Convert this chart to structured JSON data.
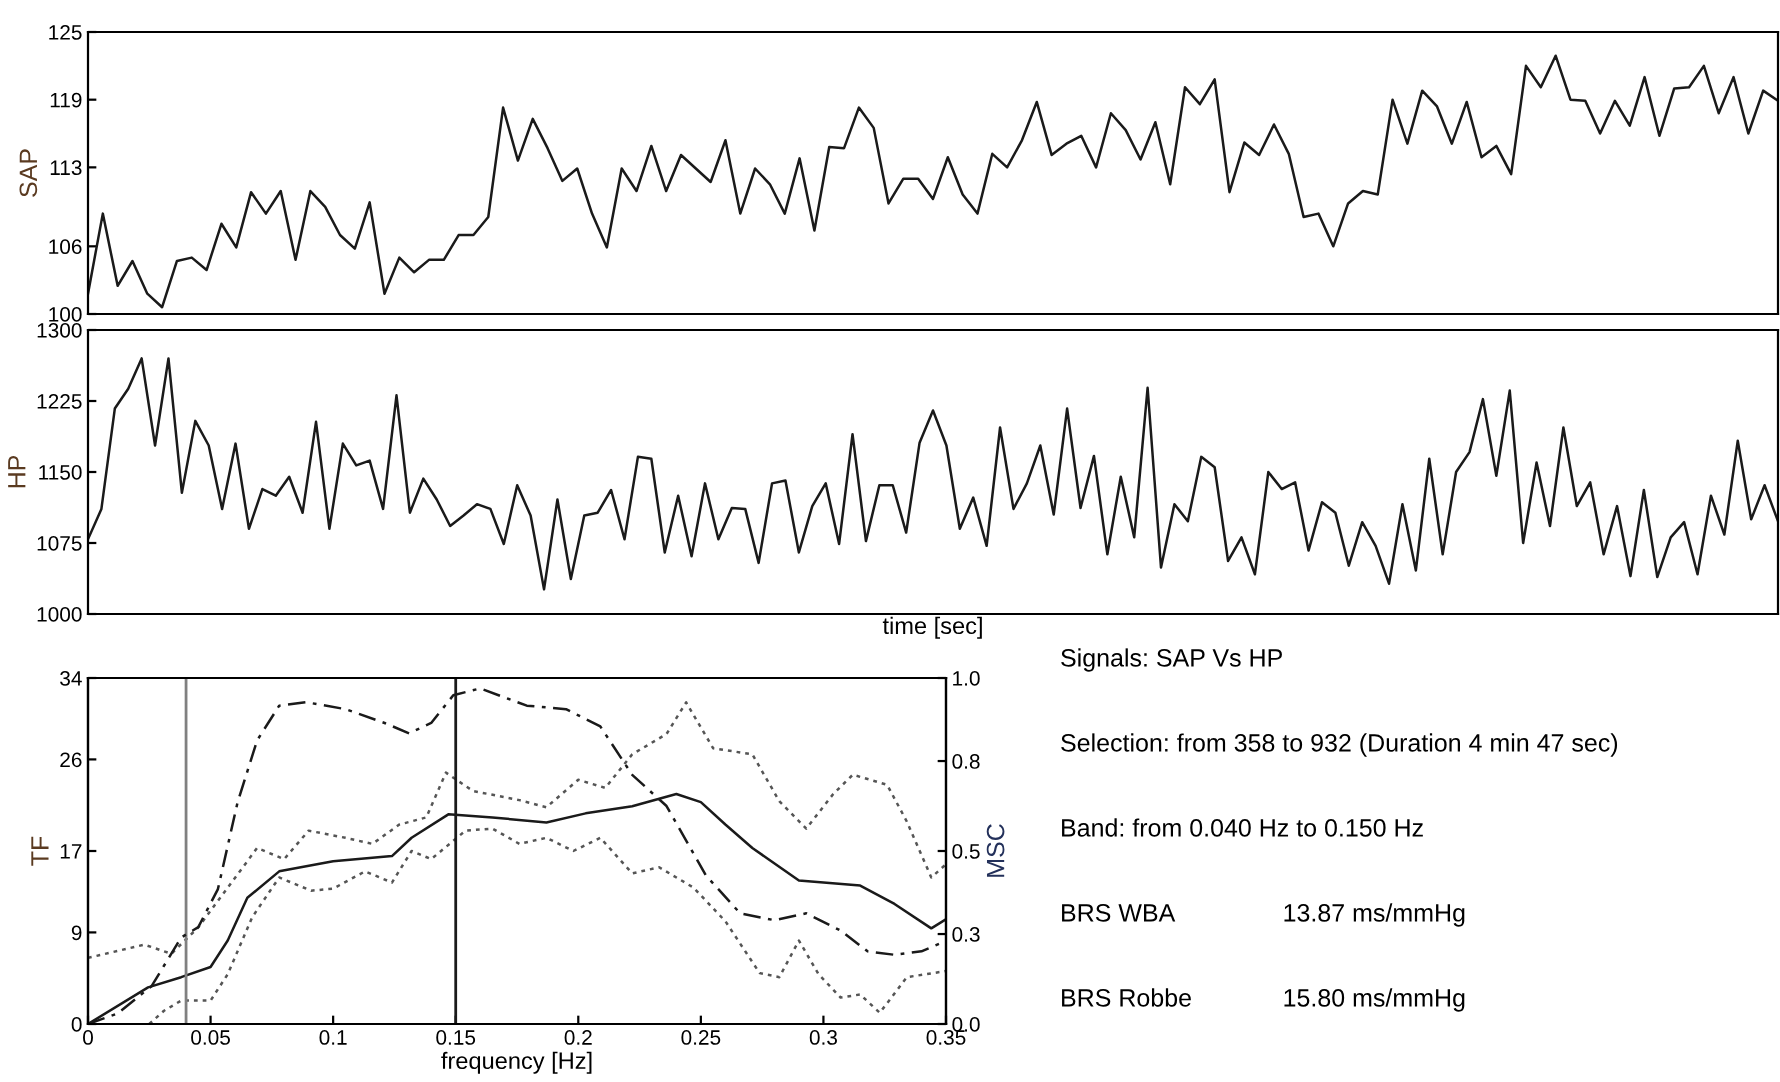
{
  "chart_data": [
    {
      "type": "line",
      "ylabel": "SAP",
      "ylim": [
        100,
        125
      ],
      "yticks": [
        100,
        106,
        113,
        119,
        125
      ],
      "tick_labels": "y",
      "categories": [
        null,
        null,
        null,
        null,
        null,
        null,
        null,
        null,
        null,
        null,
        null,
        null,
        null,
        null,
        null,
        null,
        null,
        null,
        null,
        null,
        null,
        null,
        null,
        null,
        null,
        null,
        null,
        null,
        null,
        null,
        null,
        null,
        null,
        null,
        null,
        null,
        null,
        null,
        null,
        null,
        null,
        null,
        null,
        null,
        null,
        null,
        null,
        null,
        null,
        null,
        null,
        null,
        null,
        null,
        null,
        null,
        null,
        null,
        null,
        null,
        null,
        null,
        null,
        null,
        null,
        null,
        null,
        null,
        null,
        null,
        null,
        null,
        null,
        null,
        null,
        null,
        null,
        null,
        null,
        null,
        null,
        null,
        null,
        null,
        null,
        null,
        null,
        null,
        null,
        null,
        null,
        null,
        null,
        null,
        null,
        null,
        null,
        null,
        null,
        null,
        null,
        null,
        null,
        null,
        null,
        null,
        null,
        null,
        null,
        null,
        null,
        null,
        null,
        null,
        null
      ],
      "series": [
        {
          "color": "#1a1a1a",
          "values": [
            101.8,
            108.9,
            102.5,
            104.7,
            101.8,
            100.6,
            104.7,
            105,
            103.9,
            108,
            105.9,
            110.8,
            108.9,
            110.9,
            104.8,
            110.9,
            109.5,
            107,
            105.8,
            109.9,
            101.8,
            105,
            103.7,
            104.8,
            104.8,
            107,
            107,
            108.6,
            118.3,
            113.6,
            117.3,
            114.7,
            111.8,
            112.9,
            108.9,
            105.9,
            112.9,
            110.9,
            114.9,
            110.9,
            114.1,
            112.9,
            111.7,
            115.4,
            108.9,
            112.9,
            111.5,
            108.9,
            113.8,
            107.4,
            114.8,
            114.7,
            118.3,
            116.5,
            109.8,
            112,
            112,
            110.2,
            113.9,
            110.6,
            108.9,
            114.2,
            113,
            115.4,
            118.8,
            114.1,
            115.1,
            115.8,
            113,
            117.8,
            116.3,
            113.7,
            117,
            111.5,
            120.1,
            118.6,
            120.8,
            110.8,
            115.2,
            114.1,
            116.8,
            114.2,
            108.6,
            108.9,
            106,
            109.8,
            110.9,
            110.6,
            119,
            115.1,
            119.8,
            118.4,
            115.1,
            118.8,
            113.9,
            114.9,
            112.4,
            122,
            120.1,
            122.9,
            119,
            118.9,
            116,
            118.9,
            116.7,
            121,
            115.8,
            120,
            120.1,
            122,
            117.8,
            121,
            116,
            119.8,
            118.9
          ]
        }
      ]
    },
    {
      "type": "line",
      "ylabel": "HP",
      "xlabel": "time [sec]",
      "ylim": [
        1000,
        1300
      ],
      "yticks": [
        1000,
        1075,
        1150,
        1225,
        1300
      ],
      "tick_labels": "y",
      "categories": [
        null,
        null,
        null,
        null,
        null,
        null,
        null,
        null,
        null,
        null,
        null,
        null,
        null,
        null,
        null,
        null,
        null,
        null,
        null,
        null,
        null,
        null,
        null,
        null,
        null,
        null,
        null,
        null,
        null,
        null,
        null,
        null,
        null,
        null,
        null,
        null,
        null,
        null,
        null,
        null,
        null,
        null,
        null,
        null,
        null,
        null,
        null,
        null,
        null,
        null,
        null,
        null,
        null,
        null,
        null,
        null,
        null,
        null,
        null,
        null,
        null,
        null,
        null,
        null,
        null,
        null,
        null,
        null,
        null,
        null,
        null,
        null,
        null,
        null,
        null,
        null,
        null,
        null,
        null,
        null,
        null,
        null,
        null,
        null,
        null,
        null,
        null,
        null,
        null,
        null,
        null,
        null,
        null,
        null,
        null,
        null,
        null,
        null,
        null,
        null,
        null,
        null,
        null,
        null,
        null,
        null,
        null,
        null,
        null,
        null,
        null,
        null,
        null,
        null,
        null,
        null,
        null,
        null,
        null,
        null,
        null,
        null,
        null,
        null,
        null,
        null,
        null
      ],
      "series": [
        {
          "color": "#1a1a1a",
          "values": [
            1079,
            1111,
            1217,
            1238,
            1270,
            1178,
            1270,
            1128,
            1204,
            1178,
            1111,
            1180,
            1090,
            1132,
            1125,
            1145,
            1107,
            1203,
            1090,
            1180,
            1157,
            1162,
            1111,
            1231,
            1107,
            1143,
            1121,
            1093,
            1104,
            1116,
            1111,
            1074,
            1136,
            1104,
            1026,
            1121,
            1037,
            1104,
            1107,
            1131,
            1079,
            1166,
            1164,
            1065,
            1125,
            1061,
            1138,
            1079,
            1112,
            1111,
            1054,
            1138,
            1141,
            1065,
            1114,
            1138,
            1074,
            1190,
            1077,
            1136,
            1136,
            1086,
            1181,
            1215,
            1178,
            1090,
            1123,
            1072,
            1197,
            1111,
            1138,
            1178,
            1105,
            1217,
            1112,
            1167,
            1063,
            1145,
            1081,
            1239,
            1049,
            1116,
            1098,
            1166,
            1155,
            1056,
            1081,
            1042,
            1150,
            1132,
            1139,
            1067,
            1118,
            1107,
            1051,
            1097,
            1072,
            1032,
            1116,
            1046,
            1164,
            1063,
            1150,
            1171,
            1227,
            1146,
            1236,
            1075,
            1160,
            1093,
            1197,
            1114,
            1139,
            1063,
            1114,
            1040,
            1131,
            1039,
            1081,
            1097,
            1042,
            1125,
            1084,
            1183,
            1100,
            1136,
            1098
          ]
        }
      ]
    },
    {
      "type": "line",
      "xlabel": "frequency [Hz]",
      "ylabel": "TF",
      "y2label": "MSC",
      "xlim": [
        0,
        0.35
      ],
      "xticks": [
        0,
        0.05,
        0.1,
        0.15,
        0.2,
        0.25,
        0.3,
        0.35
      ],
      "ylim": [
        0,
        34
      ],
      "yticks": [
        0,
        9,
        17,
        26,
        34
      ],
      "y2lim": [
        0,
        1
      ],
      "y2ticks": [
        {
          "value": 0,
          "label": "0.0"
        },
        {
          "value": 0.26,
          "label": "0.3"
        },
        0.5,
        {
          "value": 0.76,
          "label": "0.8"
        },
        {
          "value": 1,
          "label": "1.0"
        }
      ],
      "ref_lines": [
        {
          "axis": "x",
          "value": 0.04,
          "color": "#808080"
        },
        {
          "axis": "x",
          "value": 0.15,
          "color": "#1a1a1a"
        }
      ],
      "series": [
        {
          "color": "#1a1a1a",
          "line_style": "solid",
          "x": [
            0,
            0.0245,
            0.038,
            0.05,
            0.057,
            0.065,
            0.078,
            0.1,
            0.124,
            0.132,
            0.147,
            0.165,
            0.187,
            0.203,
            0.222,
            0.24,
            0.25,
            0.26,
            0.271,
            0.29,
            0.315,
            0.329,
            0.344,
            0.35
          ],
          "values": [
            0,
            3.6,
            4.6,
            5.6,
            8.2,
            12.4,
            15,
            16,
            16.5,
            18.3,
            20.6,
            20.3,
            19.8,
            20.7,
            21.4,
            22.6,
            21.8,
            19.6,
            17.3,
            14.1,
            13.6,
            11.8,
            9.4,
            10.3
          ]
        },
        {
          "color": "#555555",
          "line_style": "dotted",
          "x": [
            0,
            0.023,
            0.034,
            0.045,
            0.057,
            0.069,
            0.08,
            0.09,
            0.105,
            0.116,
            0.127,
            0.138,
            0.146,
            0.157,
            0.176,
            0.187,
            0.2,
            0.211,
            0.222,
            0.236,
            0.244,
            0.255,
            0.271,
            0.282,
            0.293,
            0.304,
            0.312,
            0.326,
            0.334,
            0.344,
            0.35
          ],
          "values": [
            6.5,
            7.8,
            6.9,
            9.5,
            13.4,
            17.3,
            16.2,
            19,
            18.3,
            17.7,
            19.6,
            20.3,
            24.7,
            22.9,
            22,
            21.3,
            24,
            23.2,
            26.5,
            28.5,
            31.6,
            27.1,
            26.5,
            21.9,
            19.2,
            22.6,
            24.5,
            23.5,
            19.9,
            14.4,
            15.7
          ]
        },
        {
          "color": "#555555",
          "line_style": "dotted",
          "x": [
            0.025,
            0.031,
            0.038,
            0.05,
            0.057,
            0.067,
            0.078,
            0.091,
            0.1,
            0.113,
            0.124,
            0.132,
            0.14,
            0.154,
            0.165,
            0.176,
            0.187,
            0.198,
            0.209,
            0.222,
            0.233,
            0.247,
            0.26,
            0.274,
            0.282,
            0.29,
            0.298,
            0.307,
            0.315,
            0.323,
            0.334,
            0.35
          ],
          "values": [
            0,
            1.3,
            2.3,
            2.3,
            4.9,
            10.5,
            14.4,
            13.1,
            13.3,
            15,
            13.9,
            17,
            16.2,
            19,
            19.2,
            17.7,
            18.3,
            17,
            18.3,
            14.8,
            15.4,
            13.4,
            10.1,
            5,
            4.6,
            8.2,
            4.9,
            2.6,
            2.9,
            1.1,
            4.6,
            5.2
          ]
        },
        {
          "color": "#1a1a1a",
          "line_style": "dashed",
          "axis": "y2",
          "x": [
            0,
            0.012,
            0.026,
            0.038,
            0.045,
            0.053,
            0.061,
            0.069,
            0.078,
            0.089,
            0.105,
            0.121,
            0.131,
            0.14,
            0.149,
            0.16,
            0.179,
            0.195,
            0.209,
            0.222,
            0.236,
            0.252,
            0.266,
            0.28,
            0.293,
            0.307,
            0.318,
            0.329,
            0.34,
            0.35
          ],
          "values": [
            0,
            0.03,
            0.11,
            0.25,
            0.28,
            0.39,
            0.64,
            0.82,
            0.92,
            0.93,
            0.91,
            0.87,
            0.84,
            0.87,
            0.95,
            0.97,
            0.92,
            0.91,
            0.86,
            0.72,
            0.63,
            0.43,
            0.32,
            0.3,
            0.32,
            0.27,
            0.21,
            0.2,
            0.21,
            0.24
          ]
        }
      ]
    },
    {
      "type": "other",
      "annotations": [
        "Signals: SAP Vs HP",
        "Selection: from 358 to 932 (Duration 4 min 47 sec)",
        "Band: from 0.040 Hz to 0.150 Hz",
        "BRS WBA\t13.87 ms/mmHg",
        "BRS Robbe\t15.80 ms/mmHg"
      ]
    }
  ]
}
